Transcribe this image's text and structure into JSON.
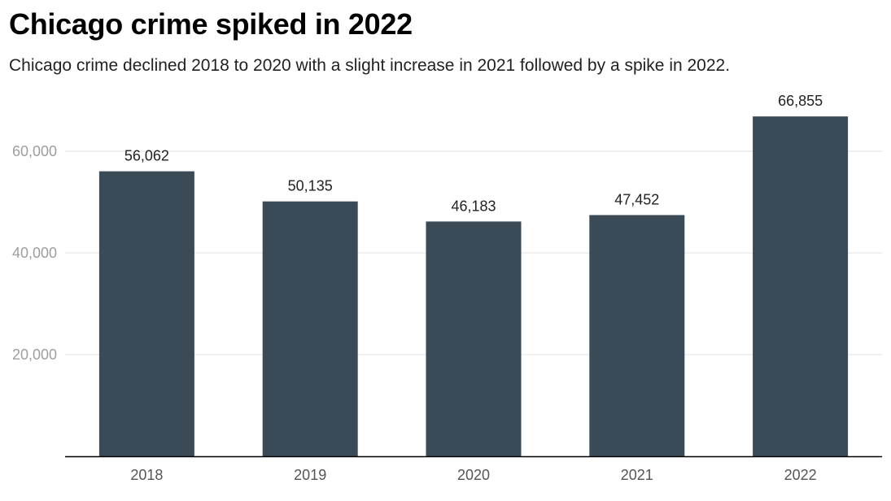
{
  "title": "Chicago crime spiked in 2022",
  "subtitle": "Chicago crime declined 2018 to 2020 with a slight increase in 2021 followed by a spike in 2022.",
  "chart_data": {
    "type": "bar",
    "categories": [
      "2018",
      "2019",
      "2020",
      "2021",
      "2022"
    ],
    "values": [
      56062,
      50135,
      46183,
      47452,
      66855
    ],
    "value_labels": [
      "56,062",
      "50,135",
      "46,183",
      "47,452",
      "66,855"
    ],
    "y_ticks": [
      20000,
      40000,
      60000
    ],
    "y_tick_labels": [
      "20,000",
      "40,000",
      "60,000"
    ],
    "ylim": [
      0,
      70000
    ],
    "grid": true,
    "bar_color": "#3a4a56",
    "grid_color": "#e3e3e3",
    "axis_color": "#000000"
  }
}
